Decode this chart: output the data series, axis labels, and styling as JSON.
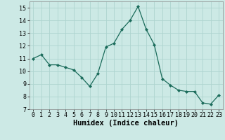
{
  "x": [
    0,
    1,
    2,
    3,
    4,
    5,
    6,
    7,
    8,
    9,
    10,
    11,
    12,
    13,
    14,
    15,
    16,
    17,
    18,
    19,
    20,
    21,
    22,
    23
  ],
  "y": [
    11.0,
    11.3,
    10.5,
    10.5,
    10.3,
    10.1,
    9.5,
    8.8,
    9.8,
    11.9,
    12.2,
    13.3,
    14.0,
    15.1,
    13.3,
    12.1,
    9.4,
    8.9,
    8.5,
    8.4,
    8.4,
    7.5,
    7.4,
    8.1
  ],
  "xlabel": "Humidex (Indice chaleur)",
  "xlim": [
    -0.5,
    23.5
  ],
  "ylim": [
    7,
    15.5
  ],
  "yticks": [
    7,
    8,
    9,
    10,
    11,
    12,
    13,
    14,
    15
  ],
  "xticks": [
    0,
    1,
    2,
    3,
    4,
    5,
    6,
    7,
    8,
    9,
    10,
    11,
    12,
    13,
    14,
    15,
    16,
    17,
    18,
    19,
    20,
    21,
    22,
    23
  ],
  "line_color": "#1a6b5a",
  "marker": "D",
  "marker_size": 2.0,
  "bg_color": "#cce9e5",
  "grid_color": "#aed4cf",
  "label_fontsize": 7.5,
  "tick_fontsize": 6.0
}
